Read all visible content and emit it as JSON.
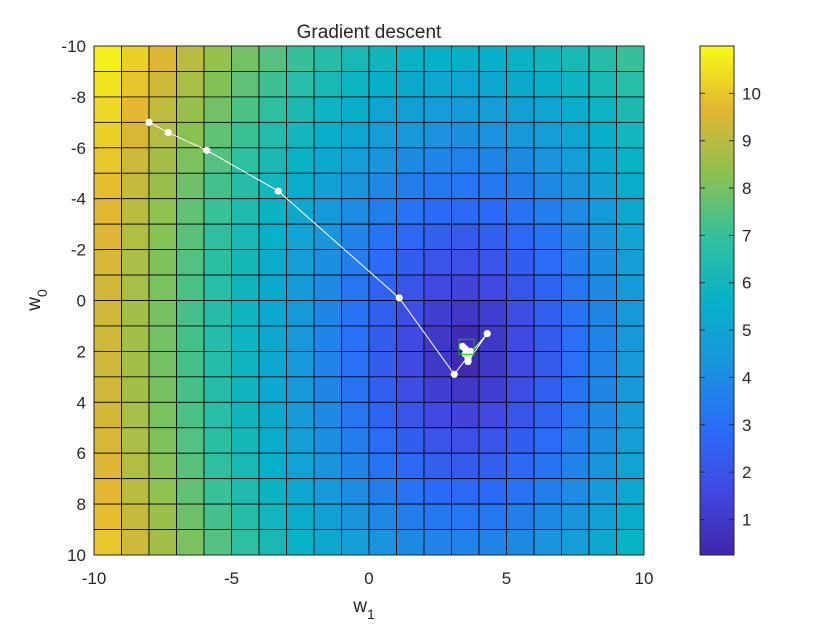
{
  "chart_data": {
    "type": "heatmap",
    "title": "Gradient descent",
    "xlabel": {
      "base": "w",
      "sub": "1"
    },
    "ylabel": {
      "base": "w",
      "sub": "0"
    },
    "xlim": [
      -10,
      10
    ],
    "ylim": [
      10,
      -10
    ],
    "y_direction": "reversed (increasing downward)",
    "xticks": [
      -10,
      -5,
      0,
      5,
      10
    ],
    "yticks": [
      -10,
      -8,
      -6,
      -4,
      -2,
      0,
      2,
      4,
      6,
      8,
      10
    ],
    "grid_cells": {
      "nx": 20,
      "ny": 20,
      "cell_size": 1,
      "edgecolor": "#000000"
    },
    "field": {
      "description": "value shown by colour at each grid cell (approx. distance-based bowl)",
      "center": [
        3.5,
        2.0
      ],
      "scale_w1": 0.7,
      "scale_w0": 0.46,
      "offset": 0.25
    },
    "colormap": "parula",
    "colorbar": {
      "range": [
        0.25,
        11
      ],
      "ticks": [
        1,
        2,
        3,
        4,
        5,
        6,
        7,
        8,
        9,
        10
      ],
      "placement": "right"
    },
    "path": {
      "color": "#ffffff",
      "points": [
        [
          -8.0,
          -7.0
        ],
        [
          -7.3,
          -6.6
        ],
        [
          -5.9,
          -5.9
        ],
        [
          -3.3,
          -4.3
        ],
        [
          1.1,
          -0.1
        ],
        [
          3.1,
          2.9
        ],
        [
          3.6,
          2.2
        ],
        [
          4.3,
          1.3
        ],
        [
          3.6,
          2.4
        ],
        [
          3.5,
          2.1
        ],
        [
          3.7,
          2.0
        ],
        [
          3.4,
          1.8
        ],
        [
          3.6,
          2.3
        ],
        [
          3.5,
          1.9
        ]
      ]
    },
    "optimum_marker": {
      "w1": 3.4,
      "w0": 1.7,
      "color": "#00c000",
      "shape": "square"
    }
  }
}
